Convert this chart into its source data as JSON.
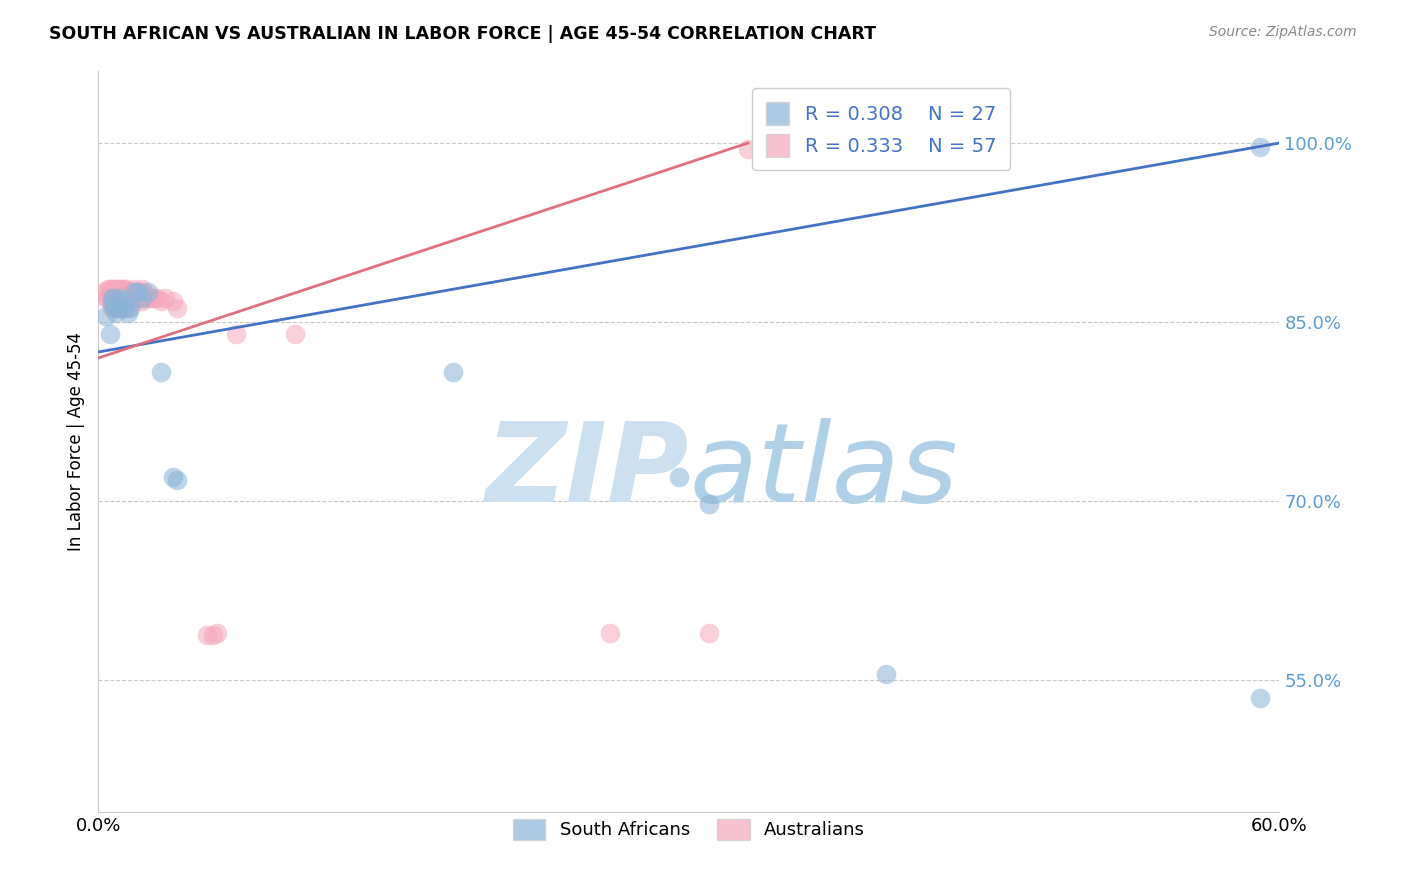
{
  "title": "SOUTH AFRICAN VS AUSTRALIAN IN LABOR FORCE | AGE 45-54 CORRELATION CHART",
  "source": "Source: ZipAtlas.com",
  "ylabel": "In Labor Force | Age 45-54",
  "y_ticks": [
    0.55,
    0.7,
    0.85,
    1.0
  ],
  "y_tick_labels": [
    "55.0%",
    "70.0%",
    "85.0%",
    "100.0%"
  ],
  "xlim": [
    0.0,
    0.6
  ],
  "ylim": [
    0.44,
    1.06
  ],
  "blue_R": 0.308,
  "blue_N": 27,
  "pink_R": 0.333,
  "pink_N": 57,
  "blue_color": "#8ab4d8",
  "pink_color": "#f5a8bc",
  "blue_line_color": "#4472c4",
  "pink_line_color": "#e07080",
  "legend_blue_label": "South Africans",
  "legend_pink_label": "Australians",
  "blue_points_x": [
    0.004,
    0.006,
    0.007,
    0.007,
    0.008,
    0.008,
    0.009,
    0.01,
    0.011,
    0.012,
    0.013,
    0.014,
    0.015,
    0.016,
    0.018,
    0.02,
    0.022,
    0.025,
    0.032,
    0.038,
    0.04,
    0.18,
    0.295,
    0.31,
    0.4,
    0.59,
    0.59
  ],
  "blue_points_y": [
    0.855,
    0.84,
    0.865,
    0.87,
    0.87,
    0.862,
    0.858,
    0.862,
    0.87,
    0.862,
    0.862,
    0.868,
    0.858,
    0.862,
    0.875,
    0.875,
    0.87,
    0.875,
    0.808,
    0.72,
    0.718,
    0.808,
    0.72,
    0.698,
    0.555,
    0.535,
    0.997
  ],
  "pink_points_x": [
    0.003,
    0.004,
    0.005,
    0.005,
    0.006,
    0.006,
    0.006,
    0.007,
    0.007,
    0.007,
    0.008,
    0.008,
    0.008,
    0.008,
    0.009,
    0.009,
    0.01,
    0.01,
    0.01,
    0.011,
    0.011,
    0.012,
    0.012,
    0.013,
    0.013,
    0.013,
    0.014,
    0.014,
    0.015,
    0.015,
    0.016,
    0.017,
    0.018,
    0.018,
    0.019,
    0.02,
    0.021,
    0.022,
    0.022,
    0.023,
    0.024,
    0.025,
    0.027,
    0.028,
    0.03,
    0.032,
    0.034,
    0.038,
    0.04,
    0.055,
    0.058,
    0.06,
    0.07,
    0.1,
    0.26,
    0.31,
    0.33
  ],
  "pink_points_y": [
    0.875,
    0.87,
    0.878,
    0.87,
    0.878,
    0.87,
    0.875,
    0.87,
    0.878,
    0.862,
    0.875,
    0.878,
    0.87,
    0.862,
    0.878,
    0.87,
    0.878,
    0.87,
    0.862,
    0.878,
    0.87,
    0.878,
    0.87,
    0.878,
    0.87,
    0.862,
    0.878,
    0.87,
    0.875,
    0.862,
    0.87,
    0.875,
    0.878,
    0.868,
    0.875,
    0.87,
    0.875,
    0.878,
    0.868,
    0.875,
    0.87,
    0.87,
    0.87,
    0.87,
    0.87,
    0.868,
    0.87,
    0.868,
    0.862,
    0.588,
    0.588,
    0.59,
    0.84,
    0.84,
    0.59,
    0.59,
    0.995
  ],
  "blue_line_x0": 0.0,
  "blue_line_x1": 0.6,
  "blue_line_y0": 0.825,
  "blue_line_y1": 1.0,
  "pink_line_x0": 0.0,
  "pink_line_x1": 0.33,
  "pink_line_y0": 0.82,
  "pink_line_y1": 1.0
}
